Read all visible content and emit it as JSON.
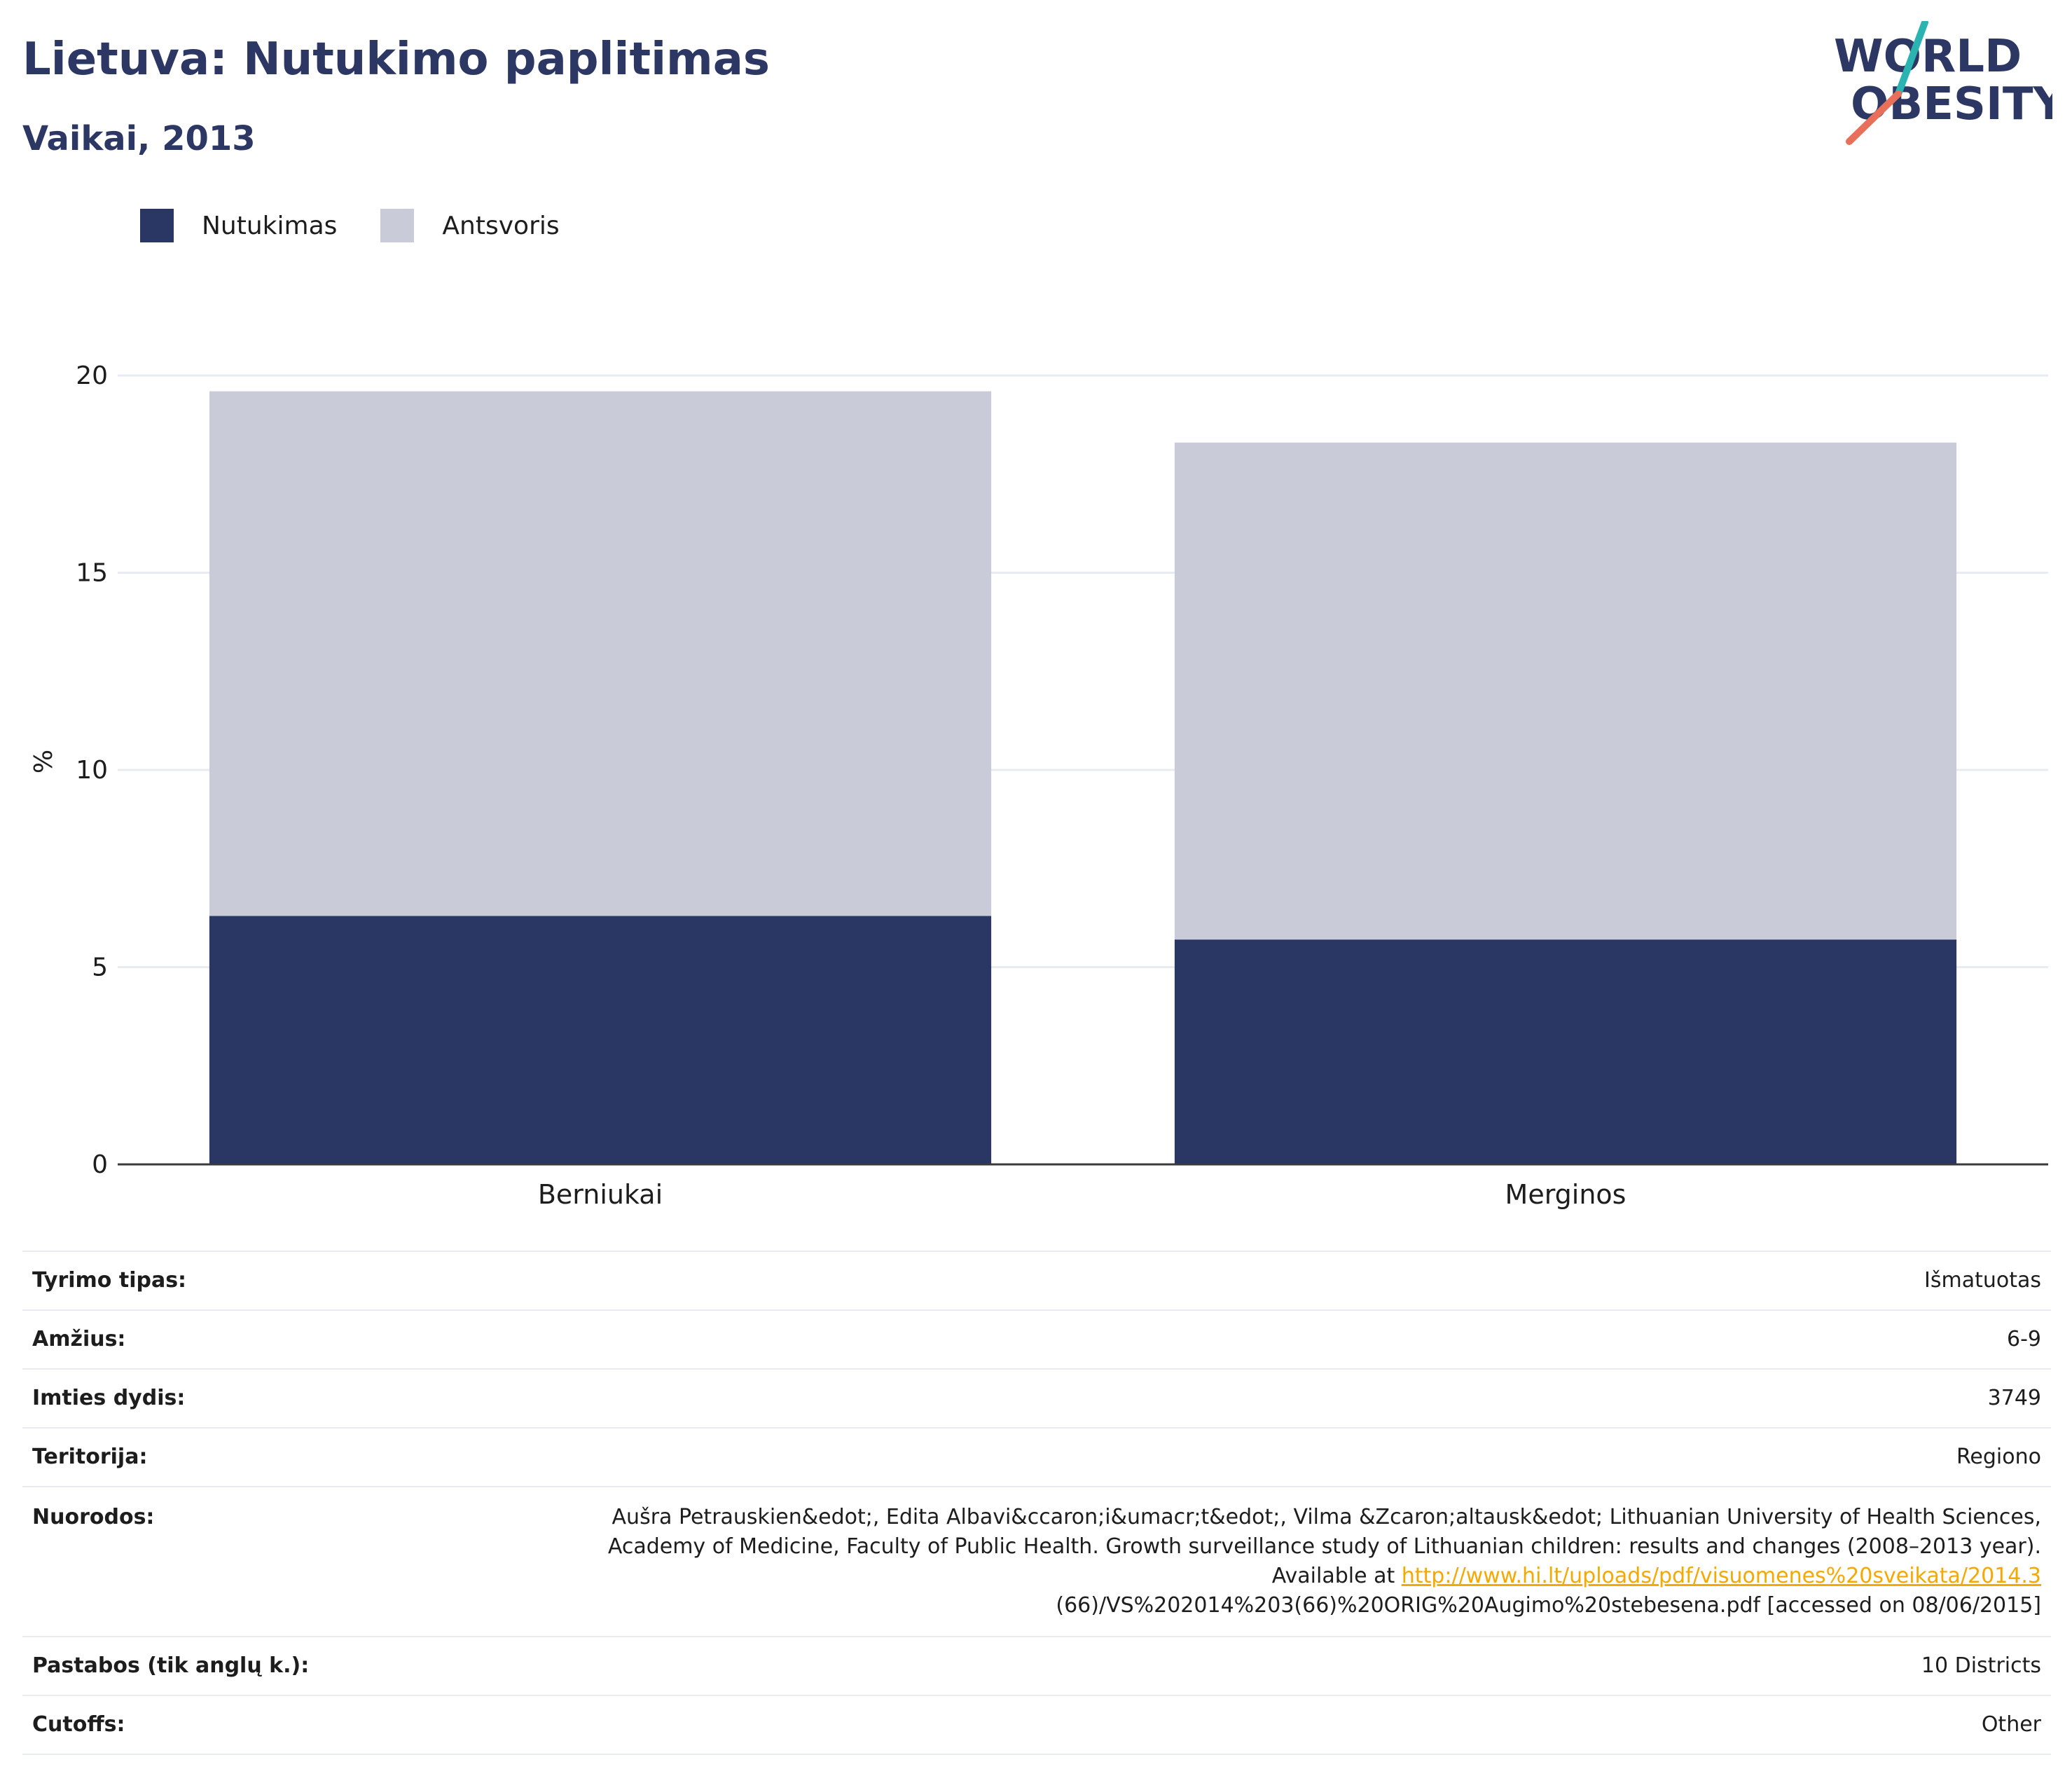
{
  "title": "Lietuva: Nutukimo paplitimas",
  "subtitle": "Vaikai, 2013",
  "logo": {
    "line1": "WORLD",
    "line2": "OBESITY"
  },
  "colors": {
    "title": "#2c3763",
    "obesity": "#2a3663",
    "overweight": "#c9ccd8",
    "grid": "#e8ebf2",
    "axis": "#3a3a3a",
    "link": "#f5a800",
    "logo_teal": "#2bb3b1",
    "logo_coral": "#e8705a"
  },
  "chart_data": {
    "type": "bar",
    "stacked": true,
    "categories": [
      "Berniukai",
      "Merginos"
    ],
    "series": [
      {
        "name": "Nutukimas",
        "values": [
          6.3,
          5.7
        ]
      },
      {
        "name": "Antsvoris",
        "values": [
          13.3,
          12.6
        ]
      }
    ],
    "ylabel": "%",
    "ylim": [
      0,
      20
    ],
    "yticks": [
      0,
      5,
      10,
      15,
      20
    ],
    "grid": true,
    "legend": "top-left"
  },
  "info": {
    "rows": [
      {
        "label": "Tyrimo tipas:",
        "value": "Išmatuotas"
      },
      {
        "label": "Amžius:",
        "value": "6-9"
      },
      {
        "label": "Imties dydis:",
        "value": "3749"
      },
      {
        "label": "Teritorija:",
        "value": "Regiono"
      }
    ],
    "reference": {
      "label": "Nuorodos:",
      "line1": "Aušra Petrauskien&edot;, Edita Albavi&ccaron;i&umacr;t&edot;, Vilma &Zcaron;altausk&edot; Lithuanian University of Health Sciences,",
      "line2": "Academy of Medicine, Faculty of Public Health. Growth surveillance study of Lithuanian children: results and changes (2008–2013 year).",
      "line3_prefix": "Available at ",
      "link": "http://www.hi.lt/uploads/pdf/visuomenes%20sveikata/2014.3",
      "line4": "(66)/VS%202014%203(66)%20ORIG%20Augimo%20stebesena.pdf [accessed on 08/06/2015]"
    },
    "rows_after": [
      {
        "label": "Pastabos (tik anglų k.):",
        "value": "10 Districts"
      },
      {
        "label": "Cutoffs:",
        "value": "Other"
      }
    ]
  }
}
